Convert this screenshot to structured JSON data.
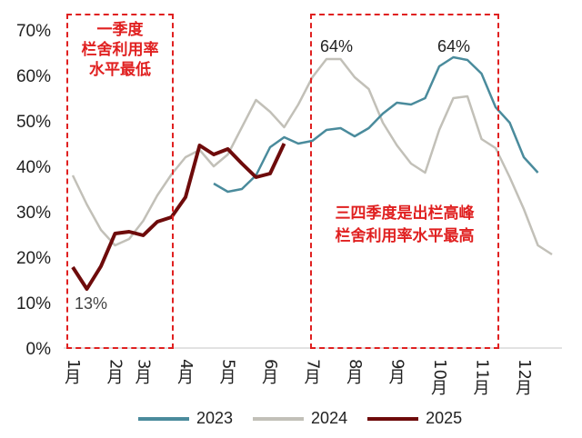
{
  "chart_data": {
    "type": "line",
    "title": "",
    "xlabel": "",
    "ylabel": "",
    "ylim": [
      0,
      70
    ],
    "yticks": [
      "0%",
      "10%",
      "20%",
      "30%",
      "40%",
      "50%",
      "60%",
      "70%"
    ],
    "x_period_count": 35,
    "month_ticks": [
      {
        "label_num": "1",
        "label_unit": "月",
        "x": 0
      },
      {
        "label_num": "2",
        "label_unit": "月",
        "x": 3
      },
      {
        "label_num": "3",
        "label_unit": "月",
        "x": 5
      },
      {
        "label_num": "4",
        "label_unit": "月",
        "x": 8
      },
      {
        "label_num": "5",
        "label_unit": "月",
        "x": 11
      },
      {
        "label_num": "6",
        "label_unit": "月",
        "x": 14
      },
      {
        "label_num": "7",
        "label_unit": "月",
        "x": 17
      },
      {
        "label_num": "8",
        "label_unit": "月",
        "x": 20
      },
      {
        "label_num": "9",
        "label_unit": "月",
        "x": 23
      },
      {
        "label_num": "10",
        "label_unit": "月",
        "x": 26
      },
      {
        "label_num": "11",
        "label_unit": "月",
        "x": 29
      },
      {
        "label_num": "12",
        "label_unit": "月",
        "x": 32
      }
    ],
    "series": [
      {
        "name": "2023",
        "color": "#4a8b9c",
        "start": 10,
        "values": [
          36.2,
          34.4,
          35,
          38,
          44.2,
          46.4,
          45,
          45.6,
          48,
          48.4,
          46.6,
          48.4,
          51.6,
          54,
          53.6,
          55,
          62,
          64,
          63.4,
          60.4,
          53,
          49.6,
          42,
          38.6
        ]
      },
      {
        "name": "2024",
        "color": "#c2c0b8",
        "start": 0,
        "values": [
          38,
          31.6,
          26,
          22.6,
          24,
          28,
          33.6,
          38.2,
          42,
          43.6,
          40,
          42.6,
          48.6,
          54.6,
          52,
          48.6,
          53.6,
          59.6,
          63.6,
          63.6,
          59.6,
          57,
          49.6,
          44.6,
          40.6,
          38.6,
          48,
          55,
          55.4,
          46,
          44,
          37.6,
          30.6,
          22.6,
          20.6
        ]
      },
      {
        "name": "2025",
        "color": "#6e0b0b",
        "start": 0,
        "values": [
          17.8,
          13,
          18,
          25.2,
          25.6,
          24.8,
          27.8,
          28.8,
          33.2,
          44.6,
          42.6,
          43.8,
          40.6,
          37.6,
          38.4,
          45
        ]
      }
    ],
    "data_labels": [
      "13%",
      "64%",
      "64%"
    ],
    "annotations": [
      {
        "lines": [
          "一季度",
          "栏舍利用率",
          "水平最低"
        ]
      },
      {
        "lines": [
          "三四季度是出栏高峰",
          "栏舍利用率水平最高"
        ]
      }
    ],
    "legend_position": "bottom",
    "grid": false
  }
}
